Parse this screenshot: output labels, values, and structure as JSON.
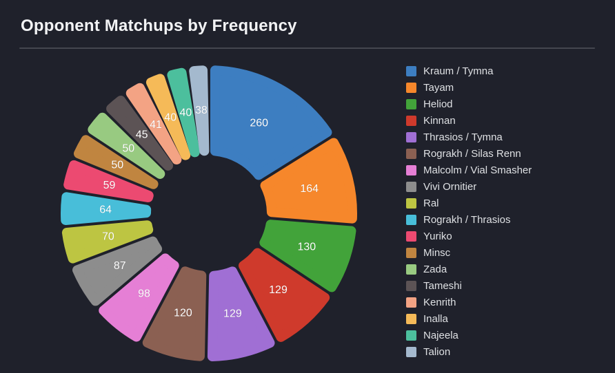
{
  "title": "Opponent Matchups by Frequency",
  "chart_data": {
    "type": "pie",
    "subtype": "donut",
    "title": "Opponent Matchups by Frequency",
    "legend_position": "right",
    "value_labels": "inside",
    "background_color": "#1f212b",
    "label_text_color": "#ffffff",
    "categories": [
      "Kraum / Tymna",
      "Tayam",
      "Heliod",
      "Kinnan",
      "Thrasios / Tymna",
      "Rograkh / Silas Renn",
      "Malcolm / Vial Smasher",
      "Vivi Ornitier",
      "Ral",
      "Rograkh / Thrasios",
      "Yuriko",
      "Minsc",
      "Zada",
      "Tameshi",
      "Kenrith",
      "Inalla",
      "Najeela",
      "Talion"
    ],
    "values": [
      260,
      164,
      130,
      129,
      129,
      120,
      98,
      87,
      70,
      64,
      59,
      50,
      50,
      45,
      41,
      40,
      40,
      38
    ],
    "colors": [
      "#3d7ec1",
      "#f6872b",
      "#42a33a",
      "#cf3a2c",
      "#a06fd4",
      "#8b6052",
      "#e57fd5",
      "#8d8d8d",
      "#bdc542",
      "#48bed9",
      "#ec4a71",
      "#c08540",
      "#98ca81",
      "#5c5355",
      "#f3a384",
      "#f5ba58",
      "#4cbf9d",
      "#a4b9ce"
    ]
  }
}
